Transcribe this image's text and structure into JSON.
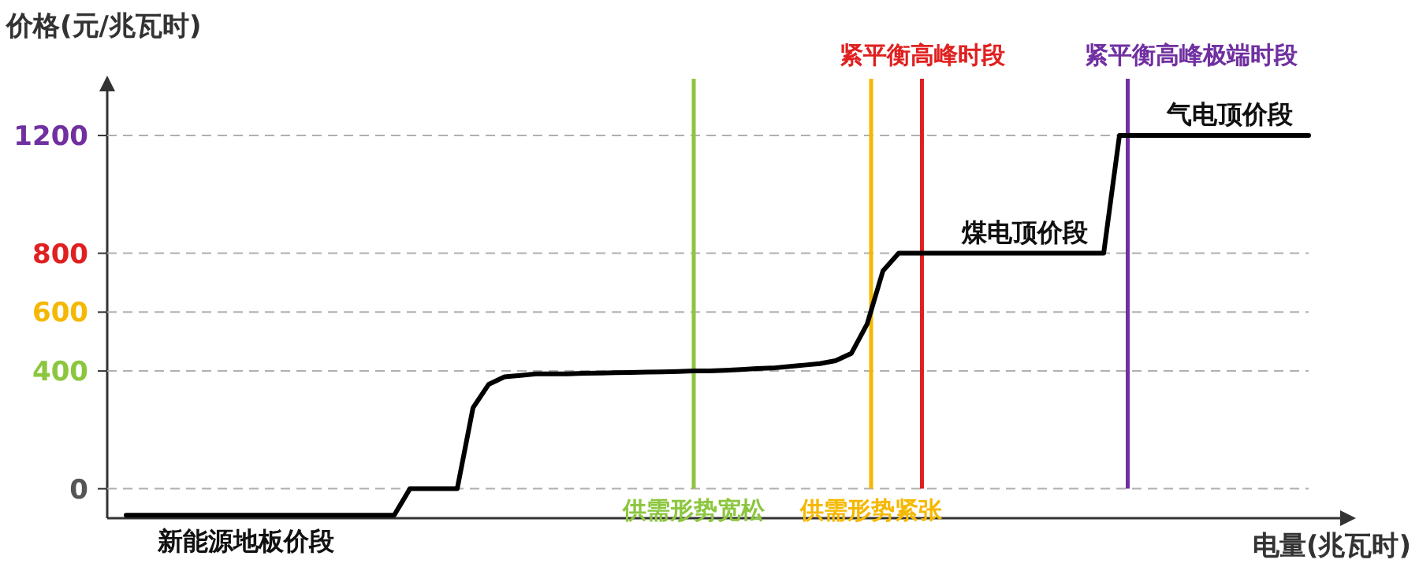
{
  "chart_data": {
    "type": "line",
    "ylabel": "价格(元/兆瓦时)",
    "xlabel": "电量(兆瓦时)",
    "categories": [
      null,
      null,
      null,
      null,
      null,
      null,
      null,
      null,
      null,
      null,
      null,
      null,
      null,
      null,
      null,
      null,
      null,
      null,
      null,
      null,
      null,
      null,
      null,
      null,
      null,
      null,
      null,
      null,
      null,
      null,
      null,
      null,
      null,
      null,
      null,
      null,
      null,
      null,
      null,
      null,
      null,
      null,
      null,
      null,
      null,
      null,
      null,
      null,
      null,
      null,
      null,
      null,
      null,
      null,
      null,
      null,
      null,
      null,
      null,
      null,
      null,
      null,
      null,
      null,
      null,
      null,
      null,
      null,
      null,
      null,
      null,
      null,
      null,
      null,
      null,
      null
    ],
    "series": [
      {
        "color": "#000000",
        "values": [
          -90,
          -90,
          -90,
          -90,
          -90,
          -90,
          -90,
          -90,
          -90,
          -90,
          -90,
          -90,
          -90,
          -90,
          -90,
          -90,
          -90,
          -90,
          0,
          0,
          0,
          0,
          275,
          355,
          380,
          385,
          390,
          390,
          390,
          392,
          393,
          394,
          395,
          396,
          397,
          398,
          400,
          400,
          402,
          405,
          408,
          410,
          415,
          420,
          425,
          435,
          460,
          560,
          740,
          800,
          800,
          800,
          800,
          800,
          800,
          800,
          800,
          800,
          800,
          800,
          800,
          800,
          800,
          1200,
          1200,
          1200,
          1200,
          1200,
          1200,
          1200,
          1200,
          1200,
          1200,
          1200,
          1200,
          1200
        ]
      }
    ],
    "ylim": [
      -100,
      1350
    ],
    "yticks": [
      0,
      400,
      600,
      800,
      1200
    ],
    "grid": "y",
    "line_style": "solid",
    "marker": "none",
    "ref_lines": [
      {
        "axis": "x",
        "label": "供需形势宽松",
        "color": "#8cc63f"
      },
      {
        "axis": "x",
        "label": "供需形势紧张",
        "color": "#f5b800"
      },
      {
        "axis": "x",
        "label": "紧平衡高峰时段",
        "color": "#e02020"
      },
      {
        "axis": "x",
        "label": "紧平衡高峰极端时段",
        "color": "#7030a0"
      }
    ],
    "annotations": [
      {
        "text": "新能源地板价段",
        "y": -90
      },
      {
        "text": "煤电顶价段",
        "y": 800
      },
      {
        "text": "气电顶价段",
        "y": 1200
      }
    ]
  }
}
